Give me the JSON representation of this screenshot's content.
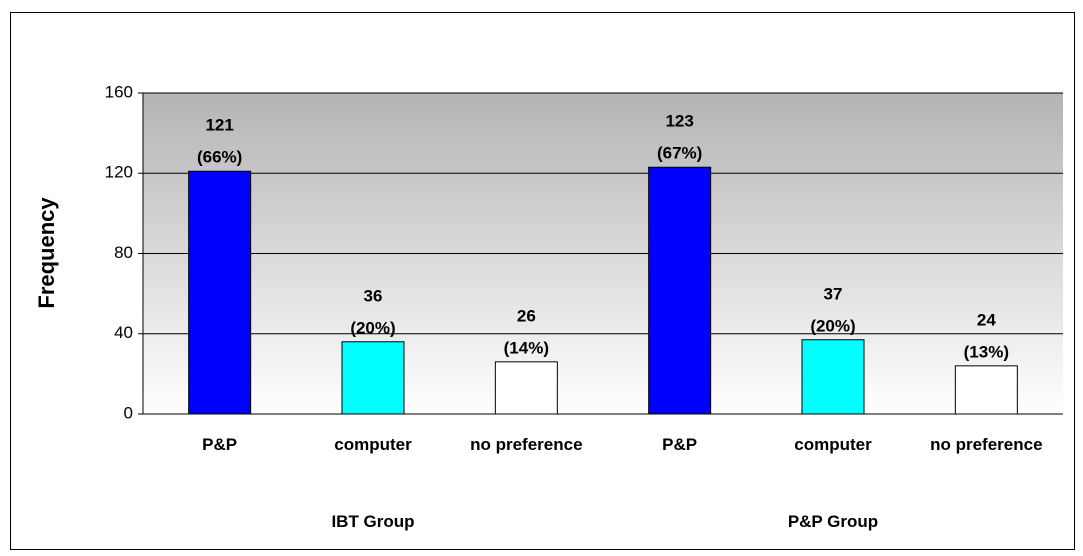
{
  "chart_data": {
    "type": "bar",
    "y_label": "Frequency",
    "categories": [
      "P&P",
      "computer",
      "no preference",
      "P&P",
      "computer",
      "no preference"
    ],
    "groups": [
      "IBT Group",
      "P&P Group"
    ],
    "values": [
      121,
      36,
      26,
      123,
      37,
      24
    ],
    "percent_labels": [
      "(66%)",
      "(20%)",
      "(14%)",
      "(67%)",
      "(20%)",
      "(13%)"
    ],
    "colors": [
      "#0000ff",
      "#00ffff",
      "#ffffff",
      "#0000ff",
      "#00ffff",
      "#ffffff"
    ],
    "ylim": [
      0,
      160
    ],
    "yticks": [
      0,
      40,
      80,
      120,
      160
    ],
    "grid": true
  }
}
